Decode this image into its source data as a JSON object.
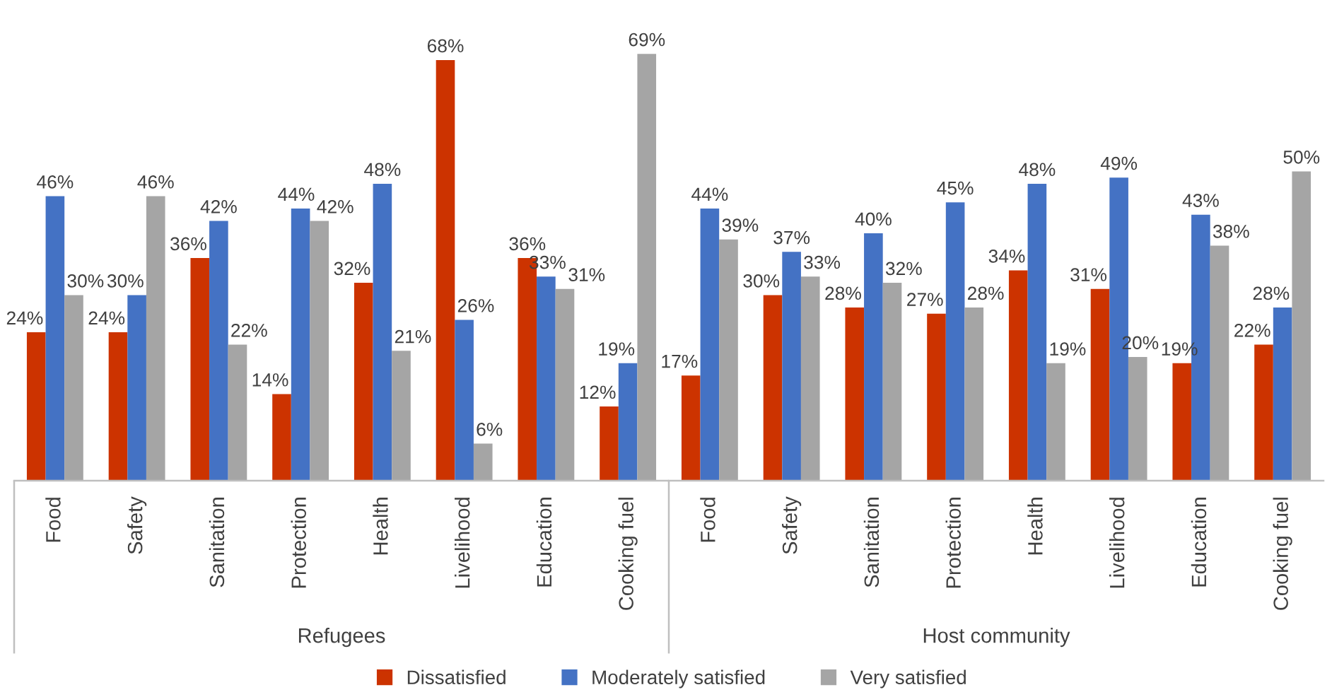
{
  "chart_data": [
    {
      "type": "bar",
      "xlabel": "Refugees",
      "categories": [
        "Food",
        "Safety",
        "Sanitation",
        "Protection",
        "Health",
        "Livelihood",
        "Education",
        "Cooking fuel"
      ],
      "tick_labels": "x",
      "legend": "bottom",
      "series": [
        {
          "name": "Dissatisfied",
          "color": "#cc3300",
          "values": [
            24,
            24,
            36,
            14,
            32,
            68,
            36,
            12
          ],
          "value_labels": [
            "24%",
            "24%",
            "36%",
            "14%",
            "32%",
            "68%",
            "36%",
            "12%"
          ]
        },
        {
          "name": "Moderately satisfied",
          "color": "#4472c4",
          "values": [
            46,
            30,
            42,
            44,
            48,
            26,
            33,
            19
          ],
          "value_labels": [
            "46%",
            "30%",
            "42%",
            "44%",
            "48%",
            "26%",
            "33%",
            "19%"
          ]
        },
        {
          "name": "Very satisfied",
          "color": "#a5a5a5",
          "values": [
            30,
            46,
            22,
            42,
            21,
            6,
            31,
            69
          ],
          "value_labels": [
            "30%",
            "46%",
            "22%",
            "42%",
            "21%",
            "6%",
            "31%",
            "69%"
          ]
        }
      ]
    },
    {
      "type": "bar",
      "xlabel": "Host community",
      "categories": [
        "Food",
        "Safety",
        "Sanitation",
        "Protection",
        "Health",
        "Livelihood",
        "Education",
        "Cooking fuel"
      ],
      "tick_labels": "x",
      "series": [
        {
          "color": "#cc3300",
          "values": [
            17,
            30,
            28,
            27,
            34,
            31,
            19,
            22
          ],
          "value_labels": [
            "17%",
            "30%",
            "28%",
            "27%",
            "34%",
            "31%",
            "19%",
            "22%"
          ]
        },
        {
          "color": "#4472c4",
          "values": [
            44,
            37,
            40,
            45,
            48,
            49,
            43,
            28
          ],
          "value_labels": [
            "44%",
            "37%",
            "40%",
            "45%",
            "48%",
            "49%",
            "43%",
            "28%"
          ]
        },
        {
          "color": "#a5a5a5",
          "values": [
            39,
            33,
            32,
            28,
            19,
            20,
            38,
            50
          ],
          "value_labels": [
            "39%",
            "33%",
            "32%",
            "28%",
            "19%",
            "20%",
            "38%",
            "50%"
          ]
        }
      ]
    }
  ]
}
